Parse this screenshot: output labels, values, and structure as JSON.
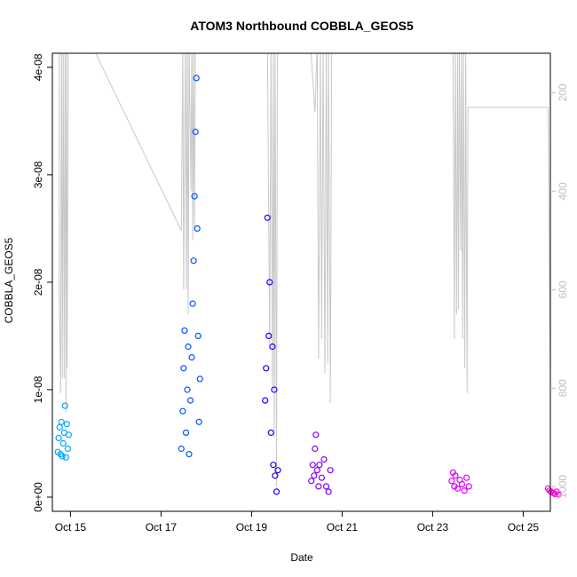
{
  "chart_data": {
    "type": "scatter",
    "title": "ATOM3 Northbound COBBLA_GEOS5",
    "xlabel": "Date",
    "ylabel": "COBBLA_GEOS5",
    "xlim": [
      14.6,
      25.6
    ],
    "ylim": [
      0,
      4.04e-08
    ],
    "x_ticks": [
      {
        "value": 15,
        "label": "Oct 15"
      },
      {
        "value": 17,
        "label": "Oct 17"
      },
      {
        "value": 19,
        "label": "Oct 19"
      },
      {
        "value": 21,
        "label": "Oct 21"
      },
      {
        "value": 23,
        "label": "Oct 23"
      },
      {
        "value": 25,
        "label": "Oct 25"
      }
    ],
    "y_ticks": [
      {
        "value": 0,
        "label": "0e+00"
      },
      {
        "value": 1e-08,
        "label": "1e-08"
      },
      {
        "value": 2e-08,
        "label": "2e-08"
      },
      {
        "value": 3e-08,
        "label": "3e-08"
      },
      {
        "value": 4e-08,
        "label": "4e-08"
      }
    ],
    "secondary_axis": {
      "side": "right",
      "reversed": true,
      "range": [
        120,
        1050
      ],
      "color": "#bebebe",
      "ticks": [
        {
          "value": 200,
          "label": "200"
        },
        {
          "value": 400,
          "label": "400"
        },
        {
          "value": 600,
          "label": "600"
        },
        {
          "value": 800,
          "label": "800"
        },
        {
          "value": 1000,
          "label": "1000"
        }
      ]
    },
    "altitude_trace": {
      "color": "#c8c8c8",
      "points": [
        [
          14.75,
          100
        ],
        [
          14.75,
          600
        ],
        [
          14.78,
          810
        ],
        [
          14.8,
          100
        ],
        [
          14.82,
          780
        ],
        [
          14.84,
          100
        ],
        [
          14.86,
          780
        ],
        [
          14.88,
          100
        ],
        [
          14.9,
          850
        ],
        [
          14.91,
          100
        ],
        [
          14.93,
          760
        ],
        [
          14.95,
          100
        ],
        [
          15.45,
          100
        ],
        [
          17.45,
          480
        ],
        [
          17.48,
          100
        ],
        [
          17.5,
          600
        ],
        [
          17.52,
          330
        ],
        [
          17.54,
          100
        ],
        [
          17.56,
          600
        ],
        [
          17.58,
          100
        ],
        [
          17.6,
          650
        ],
        [
          17.62,
          100
        ],
        [
          17.66,
          400
        ],
        [
          17.68,
          100
        ],
        [
          17.7,
          500
        ],
        [
          17.72,
          100
        ],
        [
          17.74,
          480
        ],
        [
          17.76,
          100
        ],
        [
          19.35,
          100
        ],
        [
          19.4,
          720
        ],
        [
          19.43,
          100
        ],
        [
          19.46,
          800
        ],
        [
          19.48,
          100
        ],
        [
          19.5,
          900
        ],
        [
          19.52,
          100
        ],
        [
          19.55,
          1000
        ],
        [
          19.57,
          100
        ],
        [
          20.3,
          100
        ],
        [
          20.4,
          240
        ],
        [
          20.45,
          100
        ],
        [
          20.48,
          740
        ],
        [
          20.52,
          100
        ],
        [
          20.55,
          700
        ],
        [
          20.58,
          100
        ],
        [
          20.62,
          770
        ],
        [
          20.65,
          100
        ],
        [
          20.68,
          750
        ],
        [
          20.7,
          100
        ],
        [
          20.74,
          830
        ],
        [
          20.77,
          100
        ],
        [
          23.45,
          100
        ],
        [
          23.48,
          700
        ],
        [
          23.5,
          100
        ],
        [
          23.53,
          650
        ],
        [
          23.55,
          100
        ],
        [
          23.57,
          640
        ],
        [
          23.59,
          100
        ],
        [
          23.62,
          520
        ],
        [
          23.64,
          100
        ],
        [
          23.66,
          700
        ],
        [
          23.68,
          100
        ],
        [
          23.71,
          760
        ],
        [
          23.73,
          100
        ],
        [
          23.76,
          810
        ],
        [
          23.78,
          230
        ],
        [
          25.55,
          230
        ],
        [
          25.6,
          790
        ],
        [
          25.63,
          100
        ],
        [
          25.66,
          700
        ],
        [
          25.68,
          100
        ],
        [
          25.7,
          740
        ],
        [
          25.72,
          100
        ],
        [
          25.74,
          760
        ],
        [
          25.76,
          100
        ],
        [
          25.78,
          600
        ],
        [
          25.8,
          100
        ]
      ]
    },
    "series": [
      {
        "color": "#00a6ff",
        "points": [
          [
            14.72,
            4.2e-09
          ],
          [
            14.74,
            5.5e-09
          ],
          [
            14.76,
            6.5e-09
          ],
          [
            14.78,
            4e-09
          ],
          [
            14.8,
            7e-09
          ],
          [
            14.82,
            3.8e-09
          ],
          [
            14.84,
            5e-09
          ],
          [
            14.86,
            6e-09
          ],
          [
            14.88,
            8.5e-09
          ],
          [
            14.9,
            3.7e-09
          ],
          [
            14.92,
            6.8e-09
          ],
          [
            14.94,
            4.5e-09
          ],
          [
            14.96,
            5.8e-09
          ]
        ]
      },
      {
        "color": "#0055ff",
        "points": [
          [
            17.45,
            4.5e-09
          ],
          [
            17.48,
            8e-09
          ],
          [
            17.5,
            1.2e-08
          ],
          [
            17.52,
            1.55e-08
          ],
          [
            17.55,
            6e-09
          ],
          [
            17.58,
            1e-08
          ],
          [
            17.6,
            1.4e-08
          ],
          [
            17.62,
            4e-09
          ],
          [
            17.65,
            9e-09
          ],
          [
            17.68,
            1.3e-08
          ],
          [
            17.7,
            1.8e-08
          ],
          [
            17.72,
            2.2e-08
          ],
          [
            17.74,
            2.8e-08
          ],
          [
            17.76,
            3.4e-08
          ],
          [
            17.78,
            3.9e-08
          ],
          [
            17.8,
            2.5e-08
          ],
          [
            17.82,
            1.5e-08
          ],
          [
            17.84,
            7e-09
          ],
          [
            17.86,
            1.1e-08
          ]
        ]
      },
      {
        "color": "#2200ff",
        "points": [
          [
            19.3,
            9e-09
          ],
          [
            19.32,
            1.2e-08
          ],
          [
            19.35,
            2.6e-08
          ],
          [
            19.38,
            1.5e-08
          ],
          [
            19.4,
            2e-08
          ],
          [
            19.43,
            6e-09
          ],
          [
            19.46,
            1.4e-08
          ],
          [
            19.48,
            3e-09
          ],
          [
            19.5,
            1e-08
          ],
          [
            19.52,
            2e-09
          ],
          [
            19.55,
            5e-10
          ],
          [
            19.58,
            2.5e-09
          ]
        ]
      },
      {
        "color": "#8800ff",
        "points": [
          [
            20.32,
            1.5e-09
          ],
          [
            20.35,
            3e-09
          ],
          [
            20.38,
            2e-09
          ],
          [
            20.4,
            4.5e-09
          ],
          [
            20.42,
            5.8e-09
          ],
          [
            20.45,
            2.5e-09
          ],
          [
            20.48,
            1e-09
          ],
          [
            20.5,
            3e-09
          ],
          [
            20.55,
            1.8e-09
          ],
          [
            20.6,
            3.5e-09
          ],
          [
            20.65,
            1e-09
          ],
          [
            20.7,
            5e-10
          ],
          [
            20.74,
            2.5e-09
          ]
        ]
      },
      {
        "color": "#dd00ff",
        "points": [
          [
            23.42,
            1.5e-09
          ],
          [
            23.45,
            2.3e-09
          ],
          [
            23.48,
            1e-09
          ],
          [
            23.5,
            2e-09
          ],
          [
            23.55,
            8e-10
          ],
          [
            23.6,
            1.6e-09
          ],
          [
            23.65,
            1.2e-09
          ],
          [
            23.7,
            6e-10
          ],
          [
            23.75,
            1.8e-09
          ],
          [
            23.8,
            1e-09
          ]
        ]
      },
      {
        "color": "#ff00dd",
        "points": [
          [
            25.55,
            8e-10
          ],
          [
            25.58,
            6e-10
          ],
          [
            25.62,
            5e-10
          ],
          [
            25.66,
            4e-10
          ],
          [
            25.7,
            3e-10
          ],
          [
            25.74,
            5e-10
          ],
          [
            25.78,
            2.5e-10
          ]
        ]
      }
    ]
  }
}
